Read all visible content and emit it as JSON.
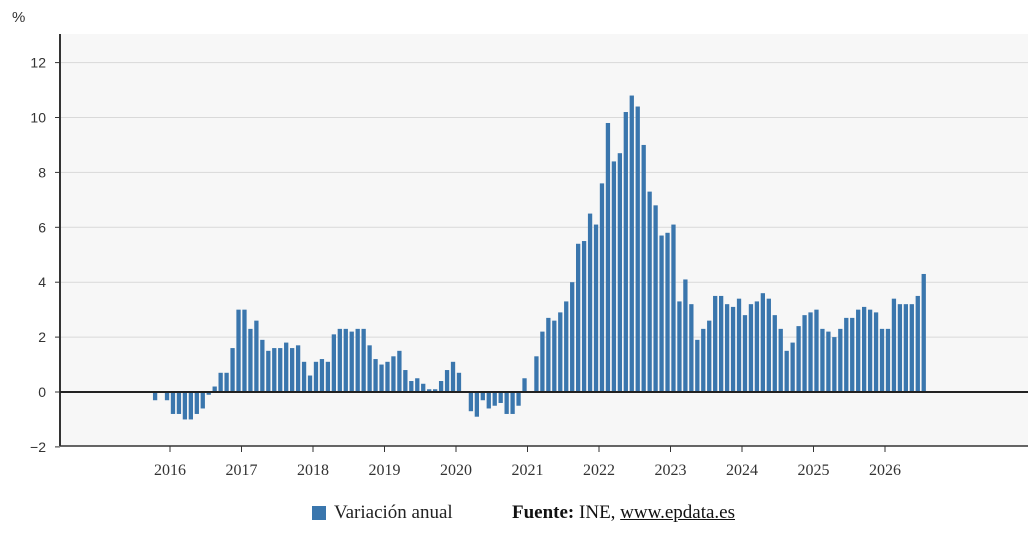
{
  "chart_data": {
    "type": "bar",
    "unit_label": "%",
    "ylim": [
      -2,
      13
    ],
    "y_ticks": [
      -2,
      0,
      2,
      4,
      6,
      8,
      10,
      12
    ],
    "grid": true,
    "x_tick_labels": [
      "2016",
      "2017",
      "2018",
      "2019",
      "2020",
      "2021",
      "2022",
      "2023",
      "2024",
      "2025",
      "2026"
    ],
    "color": "#3a76ad",
    "series": [
      {
        "name": "Variación anual",
        "start": "2015-10",
        "values": [
          -0.3,
          0.0,
          -0.3,
          -0.8,
          -0.8,
          -1.0,
          -1.0,
          -0.8,
          -0.6,
          -0.1,
          0.2,
          0.7,
          0.7,
          1.6,
          3.0,
          3.0,
          2.3,
          2.6,
          1.9,
          1.5,
          1.6,
          1.6,
          1.8,
          1.6,
          1.7,
          1.1,
          0.6,
          1.1,
          1.2,
          1.1,
          2.1,
          2.3,
          2.3,
          2.2,
          2.3,
          2.3,
          1.7,
          1.2,
          1.0,
          1.1,
          1.3,
          1.5,
          0.8,
          0.4,
          0.5,
          0.3,
          0.1,
          0.1,
          0.4,
          0.8,
          1.1,
          0.7,
          0.0,
          -0.7,
          -0.9,
          -0.3,
          -0.6,
          -0.5,
          -0.4,
          -0.8,
          -0.8,
          -0.5,
          0.5,
          0.0,
          1.3,
          2.2,
          2.7,
          2.6,
          2.9,
          3.3,
          4.0,
          5.4,
          5.5,
          6.5,
          6.1,
          7.6,
          9.8,
          8.4,
          8.7,
          10.2,
          10.8,
          10.4,
          9.0,
          7.3,
          6.8,
          5.7,
          5.8,
          6.1,
          3.3,
          4.1,
          3.2,
          1.9,
          2.3,
          2.6,
          3.5,
          3.5,
          3.2,
          3.1,
          3.4,
          2.8,
          3.2,
          3.3,
          3.6,
          3.4,
          2.8,
          2.3,
          1.5,
          1.8,
          2.4,
          2.8,
          2.9,
          3.0,
          2.3,
          2.2,
          2.0,
          2.3,
          2.7,
          2.7,
          3.0,
          3.1,
          3.0,
          2.9,
          2.3,
          2.3,
          3.4,
          3.2,
          3.2,
          3.2,
          3.5,
          4.3
        ]
      }
    ]
  },
  "legend": {
    "label": "Variación anual"
  },
  "source": {
    "prefix": "Fuente:",
    "org": " INE, ",
    "link": "www.epdata.es"
  }
}
